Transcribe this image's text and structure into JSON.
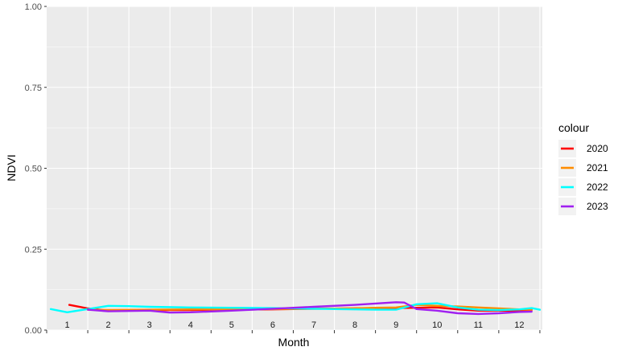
{
  "chart_data": {
    "type": "line",
    "xlabel": "Month",
    "ylabel": "NDVI",
    "ylim": [
      0,
      1
    ],
    "yticks": [
      "0.00",
      "0.25",
      "0.50",
      "0.75",
      "1.00"
    ],
    "categories": [
      "1",
      "2",
      "3",
      "4",
      "5",
      "6",
      "7",
      "8",
      "9",
      "10",
      "11",
      "12"
    ],
    "grid": true,
    "legend": {
      "title": "colour",
      "position": "right"
    },
    "series": [
      {
        "name": "2020",
        "color": "#ff0000",
        "x": [
          1.05,
          1.5,
          2,
          2.5,
          3,
          3.5,
          4,
          5,
          6,
          7,
          8,
          8.5,
          9,
          9.5,
          10,
          10.5,
          11,
          11.5,
          12,
          12.3
        ],
        "values": [
          0.078,
          0.067,
          0.06,
          0.06,
          0.061,
          0.062,
          0.062,
          0.063,
          0.064,
          0.066,
          0.067,
          0.068,
          0.068,
          0.069,
          0.07,
          0.064,
          0.06,
          0.06,
          0.06,
          0.062
        ]
      },
      {
        "name": "2021",
        "color": "#ff8c00",
        "x": [
          1.5,
          2,
          3,
          4,
          5,
          6,
          7,
          8,
          8.5,
          9,
          9.5,
          10,
          10.5,
          11,
          11.5,
          12,
          12.3
        ],
        "values": [
          0.063,
          0.062,
          0.063,
          0.064,
          0.064,
          0.065,
          0.066,
          0.067,
          0.069,
          0.07,
          0.078,
          0.075,
          0.073,
          0.07,
          0.067,
          0.064,
          0.063
        ]
      },
      {
        "name": "2022",
        "color": "#00ffff",
        "x": [
          0.6,
          0.8,
          1,
          1.5,
          2,
          2.5,
          3,
          4,
          5,
          6,
          7,
          8,
          8.5,
          9,
          9.5,
          10,
          10.5,
          11,
          11.5,
          12,
          12.3,
          12.5
        ],
        "values": [
          0.065,
          0.06,
          0.055,
          0.065,
          0.075,
          0.074,
          0.072,
          0.07,
          0.069,
          0.068,
          0.066,
          0.064,
          0.063,
          0.063,
          0.08,
          0.083,
          0.07,
          0.063,
          0.062,
          0.064,
          0.068,
          0.063
        ]
      },
      {
        "name": "2023",
        "color": "#a020f0",
        "x": [
          1.5,
          2,
          3,
          3.5,
          4,
          5,
          6,
          7,
          8,
          9,
          9.2,
          9.5,
          10,
          10.5,
          11,
          11.5,
          12,
          12.3
        ],
        "values": [
          0.063,
          0.058,
          0.06,
          0.054,
          0.055,
          0.06,
          0.066,
          0.072,
          0.078,
          0.086,
          0.085,
          0.065,
          0.06,
          0.052,
          0.05,
          0.052,
          0.056,
          0.057
        ]
      }
    ]
  }
}
